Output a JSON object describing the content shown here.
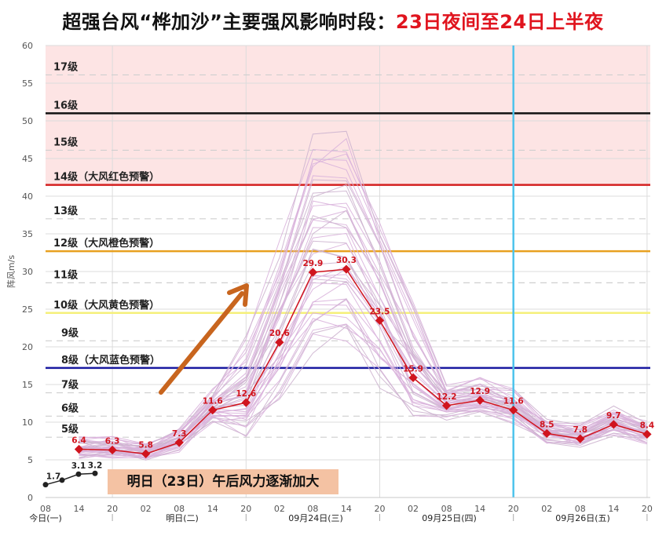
{
  "title": {
    "main": "超强台风“桦加沙”主要强风影响时段：",
    "highlight": "23日夜间至24日上半夜"
  },
  "note": "明日（23日）午后风力逐渐加大",
  "chart_data": {
    "type": "line",
    "title": "超强台风“桦加沙”主要强风影响时段：23日夜间至24日上半夜",
    "ylabel": "阵风m/s",
    "xlabel": "",
    "ylim": [
      0,
      60
    ],
    "yticks": [
      0,
      5,
      10,
      15,
      20,
      25,
      30,
      35,
      40,
      45,
      50,
      55,
      60
    ],
    "grid": true,
    "xticks": [
      "08",
      "14",
      "20",
      "02",
      "08",
      "14",
      "20",
      "02",
      "08",
      "14",
      "20",
      "02",
      "08",
      "14",
      "20",
      "02",
      "08",
      "14",
      "20"
    ],
    "day_labels": [
      "今日(一)",
      "明日(二)",
      "09月24日(三)",
      "09月25日(四)",
      "09月26日(五)"
    ],
    "levels": [
      {
        "label": "17级",
        "y": 56.1
      },
      {
        "label": "16级",
        "y": 51.0,
        "color": "#111111"
      },
      {
        "label": "15级",
        "y": 46.1
      },
      {
        "label": "14级（大风红色预警）",
        "y": 41.5,
        "color": "#d42020"
      },
      {
        "label": "13级",
        "y": 37.0
      },
      {
        "label": "12级（大风橙色预警）",
        "y": 32.7,
        "color": "#e8a020"
      },
      {
        "label": "11级",
        "y": 28.5
      },
      {
        "label": "10级（大风黄色预警）",
        "y": 24.5,
        "color": "#f5f07a"
      },
      {
        "label": "9级",
        "y": 20.8
      },
      {
        "label": "8级（大风蓝色预警）",
        "y": 17.2,
        "color": "#1a1aa0"
      },
      {
        "label": "7级",
        "y": 13.9
      },
      {
        "label": "6级",
        "y": 10.8
      },
      {
        "label": "5级",
        "y": 8.0
      }
    ],
    "series": [
      {
        "name": "观测",
        "color": "#222222",
        "x": [
          "08",
          "11",
          "14",
          "17"
        ],
        "values": [
          1.7,
          2.3,
          3.1,
          3.2
        ],
        "labels": [
          "1.7",
          "",
          "3.1",
          "3.2"
        ]
      },
      {
        "name": "预报",
        "color": "#d0141e",
        "x": [
          "14",
          "20",
          "02",
          "08",
          "14",
          "20",
          "02",
          "08",
          "14",
          "20",
          "02",
          "08",
          "14",
          "20",
          "02",
          "08",
          "14",
          "20"
        ],
        "values": [
          6.4,
          6.3,
          5.8,
          7.3,
          11.6,
          12.6,
          20.6,
          29.9,
          30.3,
          23.5,
          15.9,
          12.2,
          12.9,
          11.6,
          8.5,
          7.8,
          9.7,
          8.4
        ]
      }
    ],
    "highlight_time": "09月24日 14",
    "shaded_region": {
      "from": 41.5,
      "to": 60,
      "color": "#fde4e4"
    }
  }
}
